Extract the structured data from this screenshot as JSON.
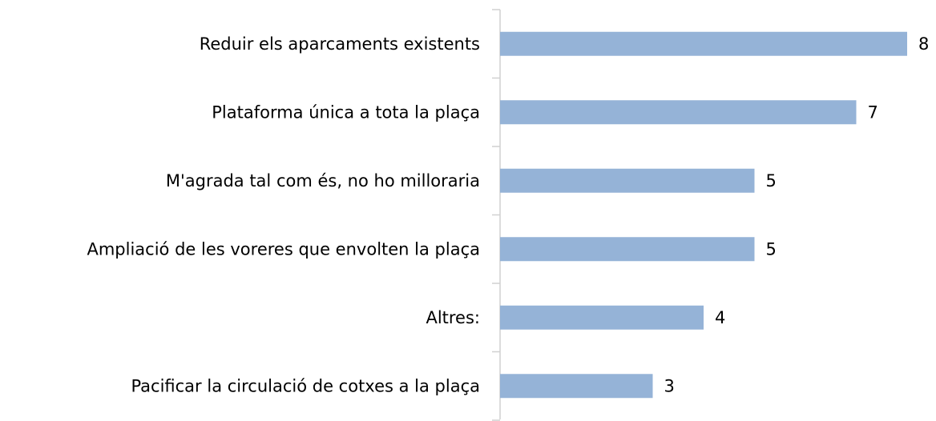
{
  "chart_data": {
    "type": "bar",
    "orientation": "horizontal",
    "categories": [
      "Reduir els aparcaments existents",
      "Plataforma única a tota la plaça",
      "M'agrada tal com és, no ho milloraria",
      "Ampliació de les voreres que envolten la plaça",
      "Altres:",
      "Pacificar la circulació de cotxes a la plaça"
    ],
    "values": [
      8,
      7,
      5,
      5,
      4,
      3
    ],
    "color": "#95b3d7"
  }
}
